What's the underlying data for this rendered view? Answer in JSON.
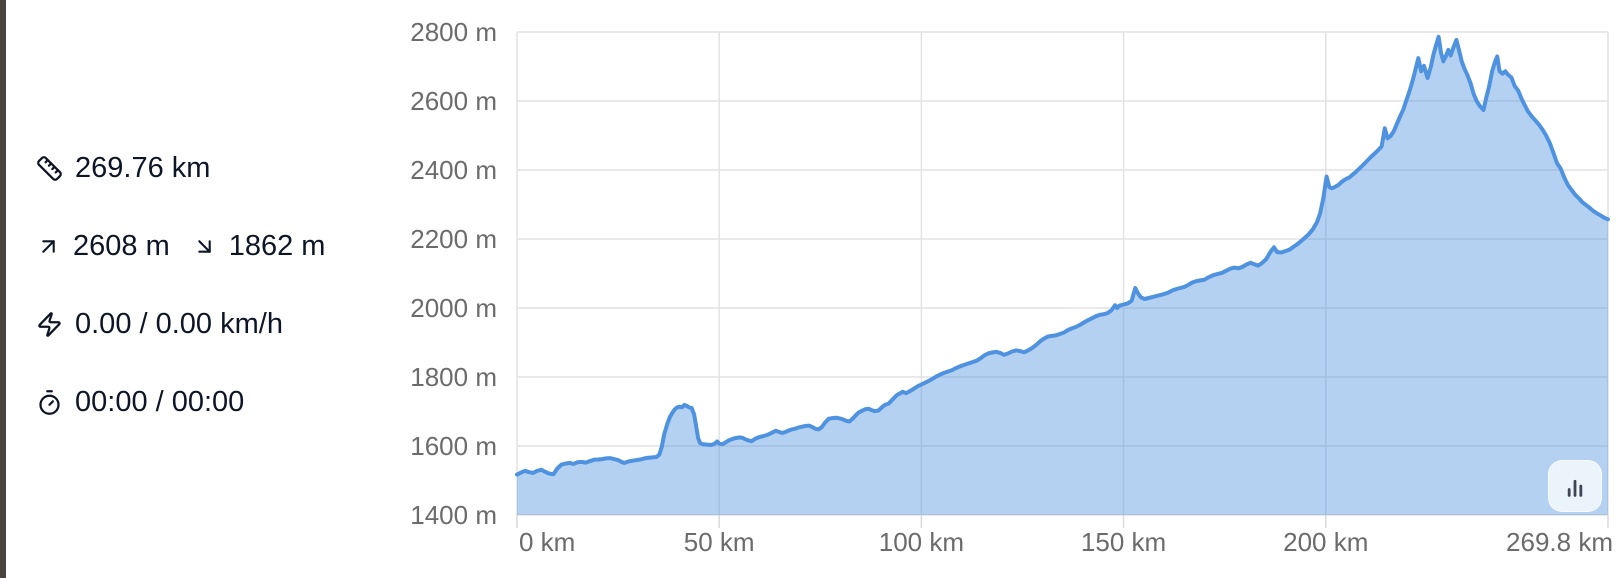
{
  "page": {
    "background": "#ffffff",
    "left_strip_color": "#49453e"
  },
  "stats": {
    "distance": {
      "icon": "ruler-icon",
      "value": "269.76 km"
    },
    "elevation": {
      "ascent_icon": "arrow-up-right-icon",
      "ascent": "2608 m",
      "descent_icon": "arrow-down-right-icon",
      "descent": "1862 m"
    },
    "speed": {
      "icon": "lightning-icon",
      "value": "0.00 / 0.00 km/h"
    },
    "time": {
      "icon": "stopwatch-icon",
      "value": "00:00 / 00:00"
    }
  },
  "chart": {
    "colors": {
      "line": "#4e92e0",
      "fill": "rgba(78,146,224,0.42)",
      "grid": "#e2e2e2",
      "tick": "#d9d9d9",
      "tick_text": "#6b6b6b",
      "button_icon": "#3e4653"
    },
    "button": {
      "icon": "bar-chart-icon"
    }
  },
  "chart_data": {
    "type": "area",
    "series_name": "elevation profile",
    "x_unit": "km",
    "y_unit": "m",
    "xlim": [
      0,
      269.8
    ],
    "ylim": [
      1400,
      2800
    ],
    "x_ticks": [
      {
        "km": 0,
        "label": "0 km",
        "align": "start"
      },
      {
        "km": 50,
        "label": "50 km",
        "align": "middle"
      },
      {
        "km": 100,
        "label": "100 km",
        "align": "middle"
      },
      {
        "km": 150,
        "label": "150 km",
        "align": "middle"
      },
      {
        "km": 200,
        "label": "200 km",
        "align": "middle"
      },
      {
        "km": 269.8,
        "label": "269.8 km",
        "align": "end"
      }
    ],
    "y_ticks": [
      {
        "m": 1400,
        "label": "1400 m"
      },
      {
        "m": 1600,
        "label": "1600 m"
      },
      {
        "m": 1800,
        "label": "1800 m"
      },
      {
        "m": 2000,
        "label": "2000 m"
      },
      {
        "m": 2200,
        "label": "2200 m"
      },
      {
        "m": 2400,
        "label": "2400 m"
      },
      {
        "m": 2600,
        "label": "2600 m"
      },
      {
        "m": 2800,
        "label": "2800 m"
      }
    ],
    "points": [
      [
        0,
        1517
      ],
      [
        1,
        1523
      ],
      [
        2,
        1528
      ],
      [
        3,
        1524
      ],
      [
        4,
        1522
      ],
      [
        5,
        1528
      ],
      [
        6,
        1531
      ],
      [
        7,
        1525
      ],
      [
        8,
        1520
      ],
      [
        9,
        1518
      ],
      [
        10,
        1535
      ],
      [
        11,
        1546
      ],
      [
        12,
        1549
      ],
      [
        13,
        1551
      ],
      [
        14,
        1548
      ],
      [
        15,
        1553
      ],
      [
        16,
        1554
      ],
      [
        17,
        1552
      ],
      [
        18,
        1556
      ],
      [
        19,
        1560
      ],
      [
        20,
        1561
      ],
      [
        21,
        1562
      ],
      [
        22,
        1564
      ],
      [
        23,
        1565
      ],
      [
        24,
        1562
      ],
      [
        25,
        1559
      ],
      [
        26,
        1553
      ],
      [
        26.6,
        1551
      ],
      [
        27.5,
        1555
      ],
      [
        28.5,
        1557
      ],
      [
        29.5,
        1559
      ],
      [
        30.5,
        1561
      ],
      [
        31.5,
        1564
      ],
      [
        32.5,
        1566
      ],
      [
        33.5,
        1567
      ],
      [
        34.5,
        1568
      ],
      [
        35.2,
        1575
      ],
      [
        35.8,
        1598
      ],
      [
        36.4,
        1634
      ],
      [
        37.2,
        1665
      ],
      [
        37.8,
        1684
      ],
      [
        38.4,
        1696
      ],
      [
        39,
        1706
      ],
      [
        39.6,
        1712
      ],
      [
        40.2,
        1714
      ],
      [
        40.8,
        1712
      ],
      [
        41.4,
        1719
      ],
      [
        42,
        1716
      ],
      [
        42.6,
        1712
      ],
      [
        43.2,
        1710
      ],
      [
        43.8,
        1692
      ],
      [
        44.3,
        1658
      ],
      [
        44.8,
        1622
      ],
      [
        45.3,
        1608
      ],
      [
        46,
        1605
      ],
      [
        47,
        1604
      ],
      [
        48,
        1603
      ],
      [
        48.8,
        1606
      ],
      [
        49.5,
        1613
      ],
      [
        50,
        1607
      ],
      [
        50.8,
        1605
      ],
      [
        51.5,
        1610
      ],
      [
        52.3,
        1616
      ],
      [
        53.2,
        1620
      ],
      [
        54,
        1623
      ],
      [
        55,
        1625
      ],
      [
        55.7,
        1624
      ],
      [
        56.5,
        1619
      ],
      [
        57.3,
        1616
      ],
      [
        58,
        1614
      ],
      [
        58.8,
        1620
      ],
      [
        59.5,
        1624
      ],
      [
        60.3,
        1627
      ],
      [
        61,
        1629
      ],
      [
        61.8,
        1632
      ],
      [
        62.5,
        1635
      ],
      [
        63.3,
        1640
      ],
      [
        64,
        1644
      ],
      [
        64.8,
        1641
      ],
      [
        65.5,
        1638
      ],
      [
        66.3,
        1640
      ],
      [
        67,
        1644
      ],
      [
        68,
        1648
      ],
      [
        69,
        1651
      ],
      [
        69.7,
        1654
      ],
      [
        70.5,
        1656
      ],
      [
        71.3,
        1658
      ],
      [
        72.2,
        1659
      ],
      [
        73,
        1655
      ],
      [
        73.8,
        1650
      ],
      [
        74.6,
        1648
      ],
      [
        75.4,
        1655
      ],
      [
        76.2,
        1668
      ],
      [
        77.1,
        1679
      ],
      [
        78,
        1681
      ],
      [
        79,
        1682
      ],
      [
        79.8,
        1680
      ],
      [
        80.6,
        1677
      ],
      [
        81.4,
        1673
      ],
      [
        82.2,
        1671
      ],
      [
        83,
        1679
      ],
      [
        84,
        1692
      ],
      [
        84.5,
        1697
      ],
      [
        85.3,
        1702
      ],
      [
        86,
        1706
      ],
      [
        86.9,
        1708
      ],
      [
        87.7,
        1704
      ],
      [
        88.5,
        1701
      ],
      [
        89.4,
        1703
      ],
      [
        90.2,
        1712
      ],
      [
        91,
        1719
      ],
      [
        91.9,
        1723
      ],
      [
        92.8,
        1734
      ],
      [
        93.8,
        1746
      ],
      [
        94.6,
        1752
      ],
      [
        95.4,
        1757
      ],
      [
        96.2,
        1753
      ],
      [
        97,
        1758
      ],
      [
        98,
        1765
      ],
      [
        99.2,
        1774
      ],
      [
        100.3,
        1780
      ],
      [
        101.4,
        1786
      ],
      [
        102.5,
        1793
      ],
      [
        103.6,
        1801
      ],
      [
        104.6,
        1807
      ],
      [
        105.6,
        1812
      ],
      [
        106.6,
        1816
      ],
      [
        107.6,
        1820
      ],
      [
        108.6,
        1826
      ],
      [
        109.6,
        1831
      ],
      [
        110.6,
        1835
      ],
      [
        111.6,
        1839
      ],
      [
        112.6,
        1843
      ],
      [
        113.6,
        1847
      ],
      [
        114.6,
        1854
      ],
      [
        115.6,
        1863
      ],
      [
        116.5,
        1868
      ],
      [
        117.5,
        1871
      ],
      [
        118.5,
        1873
      ],
      [
        119.5,
        1870
      ],
      [
        120.4,
        1864
      ],
      [
        121.4,
        1868
      ],
      [
        122.4,
        1874
      ],
      [
        123.4,
        1877
      ],
      [
        124.4,
        1875
      ],
      [
        125.4,
        1872
      ],
      [
        126.4,
        1877
      ],
      [
        127.4,
        1884
      ],
      [
        128.4,
        1893
      ],
      [
        129.4,
        1904
      ],
      [
        130.4,
        1912
      ],
      [
        131.3,
        1917
      ],
      [
        132.3,
        1919
      ],
      [
        133.3,
        1921
      ],
      [
        134.3,
        1925
      ],
      [
        135.3,
        1929
      ],
      [
        136.2,
        1936
      ],
      [
        137.2,
        1941
      ],
      [
        138.2,
        1945
      ],
      [
        139.2,
        1951
      ],
      [
        140.2,
        1958
      ],
      [
        141.1,
        1964
      ],
      [
        142.1,
        1970
      ],
      [
        143.1,
        1976
      ],
      [
        144.1,
        1980
      ],
      [
        145.1,
        1982
      ],
      [
        146,
        1985
      ],
      [
        147,
        1993
      ],
      [
        147.9,
        2008
      ],
      [
        148.4,
        2000
      ],
      [
        149,
        2007
      ],
      [
        150,
        2010
      ],
      [
        151,
        2013
      ],
      [
        152,
        2021
      ],
      [
        152.9,
        2058
      ],
      [
        153.6,
        2042
      ],
      [
        154.3,
        2031
      ],
      [
        155.2,
        2026
      ],
      [
        156.2,
        2029
      ],
      [
        157.2,
        2032
      ],
      [
        158.2,
        2035
      ],
      [
        159.2,
        2038
      ],
      [
        160.1,
        2041
      ],
      [
        161.1,
        2045
      ],
      [
        162.1,
        2051
      ],
      [
        163.1,
        2055
      ],
      [
        164,
        2058
      ],
      [
        165,
        2061
      ],
      [
        166,
        2067
      ],
      [
        167,
        2074
      ],
      [
        168,
        2078
      ],
      [
        169,
        2080
      ],
      [
        170,
        2082
      ],
      [
        171,
        2089
      ],
      [
        172.4,
        2096
      ],
      [
        173.4,
        2099
      ],
      [
        174.4,
        2102
      ],
      [
        175.4,
        2108
      ],
      [
        176.4,
        2114
      ],
      [
        177.4,
        2117
      ],
      [
        178.4,
        2115
      ],
      [
        179.4,
        2119
      ],
      [
        180.4,
        2126
      ],
      [
        181.4,
        2131
      ],
      [
        182.3,
        2127
      ],
      [
        183.3,
        2123
      ],
      [
        184.3,
        2131
      ],
      [
        185.3,
        2142
      ],
      [
        186.3,
        2162
      ],
      [
        187.2,
        2176
      ],
      [
        188,
        2162
      ],
      [
        189,
        2161
      ],
      [
        190,
        2165
      ],
      [
        191,
        2169
      ],
      [
        192,
        2177
      ],
      [
        193.3,
        2188
      ],
      [
        194.5,
        2200
      ],
      [
        195.8,
        2214
      ],
      [
        196.8,
        2228
      ],
      [
        197.8,
        2248
      ],
      [
        198.6,
        2274
      ],
      [
        199.4,
        2318
      ],
      [
        200.2,
        2381
      ],
      [
        200.9,
        2350
      ],
      [
        201.6,
        2347
      ],
      [
        202.4,
        2352
      ],
      [
        203.2,
        2357
      ],
      [
        204,
        2366
      ],
      [
        205,
        2374
      ],
      [
        205.8,
        2378
      ],
      [
        206.6,
        2386
      ],
      [
        207.4,
        2394
      ],
      [
        208.2,
        2403
      ],
      [
        209.2,
        2414
      ],
      [
        210.2,
        2426
      ],
      [
        211.2,
        2438
      ],
      [
        212.2,
        2449
      ],
      [
        213,
        2458
      ],
      [
        213.8,
        2468
      ],
      [
        214.6,
        2521
      ],
      [
        215.3,
        2492
      ],
      [
        216,
        2498
      ],
      [
        216.8,
        2512
      ],
      [
        217.6,
        2534
      ],
      [
        218.4,
        2556
      ],
      [
        219.2,
        2576
      ],
      [
        220,
        2604
      ],
      [
        220.8,
        2632
      ],
      [
        221.6,
        2664
      ],
      [
        222.3,
        2696
      ],
      [
        222.9,
        2724
      ],
      [
        223.6,
        2686
      ],
      [
        224.3,
        2702
      ],
      [
        225.2,
        2667
      ],
      [
        226,
        2700
      ],
      [
        226.6,
        2733
      ],
      [
        227.3,
        2762
      ],
      [
        227.9,
        2786
      ],
      [
        228.5,
        2740
      ],
      [
        229.1,
        2715
      ],
      [
        229.7,
        2730
      ],
      [
        230.3,
        2748
      ],
      [
        230.9,
        2732
      ],
      [
        231.6,
        2756
      ],
      [
        232.3,
        2777
      ],
      [
        232.9,
        2750
      ],
      [
        233.6,
        2716
      ],
      [
        234.3,
        2694
      ],
      [
        235,
        2676
      ],
      [
        235.8,
        2652
      ],
      [
        236.6,
        2620
      ],
      [
        237.4,
        2598
      ],
      [
        238.2,
        2584
      ],
      [
        239,
        2574
      ],
      [
        239.7,
        2610
      ],
      [
        240.4,
        2642
      ],
      [
        241.2,
        2688
      ],
      [
        241.9,
        2715
      ],
      [
        242.4,
        2729
      ],
      [
        243,
        2686
      ],
      [
        243.7,
        2679
      ],
      [
        244.4,
        2686
      ],
      [
        245.1,
        2676
      ],
      [
        245.9,
        2668
      ],
      [
        246.7,
        2644
      ],
      [
        247.6,
        2630
      ],
      [
        248.4,
        2607
      ],
      [
        249.2,
        2588
      ],
      [
        250,
        2570
      ],
      [
        250.9,
        2556
      ],
      [
        251.8,
        2544
      ],
      [
        252.7,
        2532
      ],
      [
        253.6,
        2517
      ],
      [
        254.5,
        2500
      ],
      [
        255.4,
        2478
      ],
      [
        256.3,
        2450
      ],
      [
        257.2,
        2420
      ],
      [
        258.1,
        2404
      ],
      [
        259,
        2378
      ],
      [
        259.9,
        2356
      ],
      [
        260.8,
        2342
      ],
      [
        261.7,
        2328
      ],
      [
        262.6,
        2318
      ],
      [
        263.5,
        2306
      ],
      [
        264.4,
        2298
      ],
      [
        265.3,
        2290
      ],
      [
        266.2,
        2281
      ],
      [
        267.1,
        2274
      ],
      [
        268,
        2268
      ],
      [
        269,
        2261
      ],
      [
        269.8,
        2257
      ]
    ]
  }
}
